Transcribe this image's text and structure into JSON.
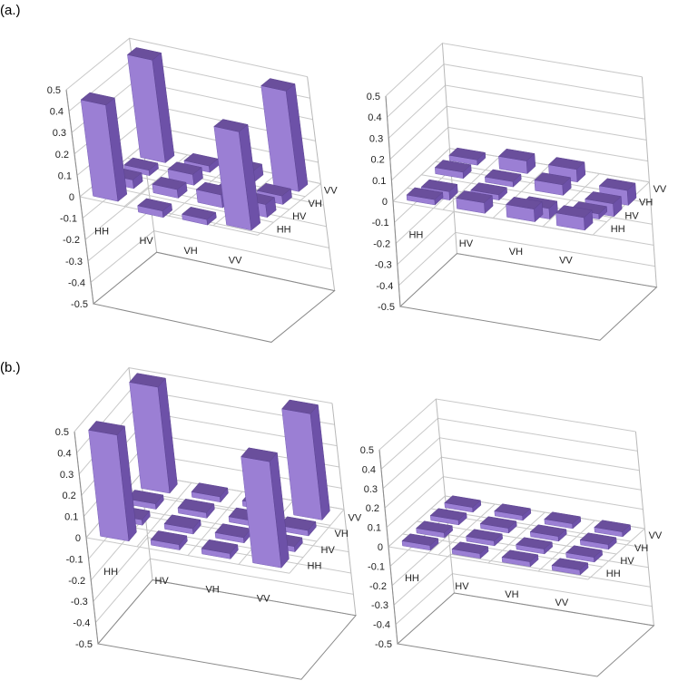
{
  "figure": {
    "labels": [
      "(a.)",
      "(b.)"
    ]
  },
  "colors": {
    "bar_front": "#9b7fd4",
    "bar_side": "#6d51a8",
    "bar_top": "#6a4f9c"
  },
  "chart_data": [
    {
      "type": "bar3d",
      "panel": "(a.)",
      "rows": [
        "HH",
        "HV",
        "VH",
        "VV"
      ],
      "cols": [
        "HH",
        "HV",
        "VH",
        "VV"
      ],
      "zlim": [
        -0.5,
        0.5
      ],
      "zticks": [
        "0.5",
        "0.4",
        "0.3",
        "0.2",
        "0.1",
        "0",
        "-0.1",
        "-0.2",
        "-0.3",
        "-0.4",
        "-0.5"
      ],
      "values": [
        [
          0.45,
          -0.03,
          -0.02,
          0.46
        ],
        [
          0.04,
          0.04,
          0.06,
          0.06
        ],
        [
          0.01,
          0.05,
          -0.06,
          0.04
        ],
        [
          0.48,
          0.03,
          0.05,
          0.47
        ]
      ]
    },
    {
      "type": "bar3d",
      "panel": "(a.)",
      "rows": [
        "HH",
        "HV",
        "VH",
        "VV"
      ],
      "cols": [
        "HH",
        "HV",
        "VH",
        "VV"
      ],
      "zlim": [
        -0.5,
        0.5
      ],
      "zticks": [
        "0.5",
        "0.4",
        "0.3",
        "0.2",
        "0.1",
        "0",
        "-0.1",
        "-0.2",
        "-0.3",
        "-0.4",
        "-0.5"
      ],
      "values": [
        [
          0.0,
          0.05,
          0.06,
          0.06
        ],
        [
          -0.04,
          0.0,
          -0.05,
          -0.01
        ],
        [
          0.03,
          0.01,
          0.05,
          -0.06
        ],
        [
          0.0,
          0.06,
          0.06,
          -0.07
        ]
      ]
    },
    {
      "type": "bar3d",
      "panel": "(b.)",
      "rows": [
        "HH",
        "HV",
        "VH",
        "VV"
      ],
      "cols": [
        "HH",
        "HV",
        "VH",
        "VV"
      ],
      "zlim": [
        -0.5,
        0.5
      ],
      "zticks": [
        "0.5",
        "0.4",
        "0.3",
        "0.2",
        "0.1",
        "0",
        "-0.1",
        "-0.2",
        "-0.3",
        "-0.4",
        "-0.5"
      ],
      "values": [
        [
          0.5,
          0.0,
          0.0,
          0.5
        ],
        [
          0.0,
          0.0,
          0.0,
          0.0
        ],
        [
          0.0,
          0.0,
          0.0,
          0.0
        ],
        [
          0.5,
          0.0,
          0.0,
          0.5
        ]
      ]
    },
    {
      "type": "bar3d",
      "panel": "(b.)",
      "rows": [
        "HH",
        "HV",
        "VH",
        "VV"
      ],
      "cols": [
        "HH",
        "HV",
        "VH",
        "VV"
      ],
      "zlim": [
        -0.5,
        0.5
      ],
      "zticks": [
        "0.5",
        "0.4",
        "0.3",
        "0.2",
        "0.1",
        "0",
        "-0.1",
        "-0.2",
        "-0.3",
        "-0.4",
        "-0.5"
      ],
      "values": [
        [
          0.0,
          0.0,
          0.0,
          0.0
        ],
        [
          0.0,
          0.0,
          0.0,
          0.0
        ],
        [
          0.0,
          0.0,
          0.0,
          0.0
        ],
        [
          0.0,
          0.0,
          0.0,
          0.0
        ]
      ]
    }
  ]
}
